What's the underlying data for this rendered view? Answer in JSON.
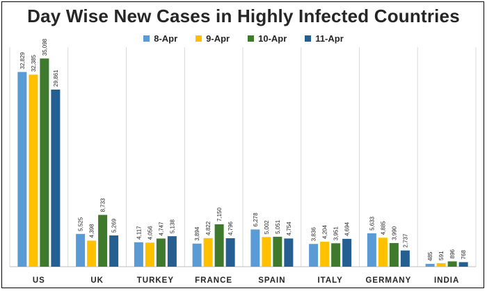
{
  "chart_data": {
    "type": "bar",
    "title": "Day Wise New Cases in Highly Infected Countries",
    "xlabel": "",
    "ylabel": "",
    "ylim": [
      0,
      37000
    ],
    "grid": "vertical category separators",
    "legend_position": "top-center",
    "categories": [
      "US",
      "UK",
      "TURKEY",
      "FRANCE",
      "SPAIN",
      "ITALY",
      "GERMANY",
      "INDIA"
    ],
    "series": [
      {
        "name": "8-Apr",
        "color": "#5B9BD5",
        "values": [
          32829,
          5525,
          4117,
          3894,
          6278,
          3836,
          5633,
          485
        ]
      },
      {
        "name": "9-Apr",
        "color": "#FFC000",
        "values": [
          32385,
          4398,
          4056,
          4822,
          5002,
          4204,
          4885,
          591
        ]
      },
      {
        "name": "10-Apr",
        "color": "#3F7A2C",
        "values": [
          35098,
          8733,
          4747,
          7150,
          5051,
          3951,
          3990,
          896
        ]
      },
      {
        "name": "11-Apr",
        "color": "#255E91",
        "values": [
          29861,
          5269,
          5138,
          4796,
          4754,
          4694,
          2737,
          768
        ]
      }
    ]
  }
}
